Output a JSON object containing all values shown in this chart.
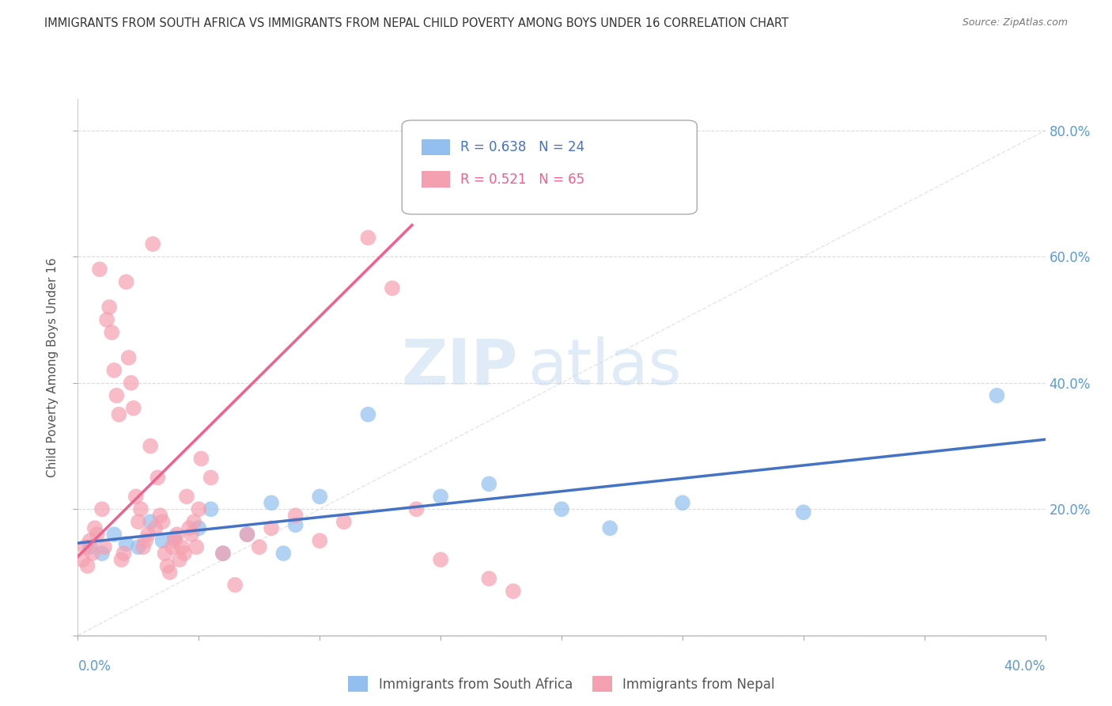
{
  "title": "IMMIGRANTS FROM SOUTH AFRICA VS IMMIGRANTS FROM NEPAL CHILD POVERTY AMONG BOYS UNDER 16 CORRELATION CHART",
  "source": "Source: ZipAtlas.com",
  "ylabel": "Child Poverty Among Boys Under 16",
  "legend_blue_r": "R = 0.638",
  "legend_blue_n": "N = 24",
  "legend_pink_r": "R = 0.521",
  "legend_pink_n": "N = 65",
  "blue_color": "#92BFEE",
  "pink_color": "#F5A0B0",
  "blue_line_color": "#4472C4",
  "pink_line_color": "#F06090",
  "watermark_zip": "ZIP",
  "watermark_atlas": "atlas",
  "blue_scatter": [
    [
      0.005,
      0.14
    ],
    [
      0.01,
      0.13
    ],
    [
      0.015,
      0.16
    ],
    [
      0.02,
      0.145
    ],
    [
      0.025,
      0.14
    ],
    [
      0.03,
      0.18
    ],
    [
      0.035,
      0.15
    ],
    [
      0.04,
      0.155
    ],
    [
      0.05,
      0.17
    ],
    [
      0.055,
      0.2
    ],
    [
      0.06,
      0.13
    ],
    [
      0.07,
      0.16
    ],
    [
      0.08,
      0.21
    ],
    [
      0.085,
      0.13
    ],
    [
      0.09,
      0.175
    ],
    [
      0.1,
      0.22
    ],
    [
      0.12,
      0.35
    ],
    [
      0.15,
      0.22
    ],
    [
      0.17,
      0.24
    ],
    [
      0.2,
      0.2
    ],
    [
      0.22,
      0.17
    ],
    [
      0.25,
      0.21
    ],
    [
      0.3,
      0.195
    ],
    [
      0.38,
      0.38
    ]
  ],
  "pink_scatter": [
    [
      0.002,
      0.12
    ],
    [
      0.003,
      0.14
    ],
    [
      0.004,
      0.11
    ],
    [
      0.005,
      0.15
    ],
    [
      0.006,
      0.13
    ],
    [
      0.007,
      0.17
    ],
    [
      0.008,
      0.16
    ],
    [
      0.009,
      0.58
    ],
    [
      0.01,
      0.2
    ],
    [
      0.011,
      0.14
    ],
    [
      0.012,
      0.5
    ],
    [
      0.013,
      0.52
    ],
    [
      0.014,
      0.48
    ],
    [
      0.015,
      0.42
    ],
    [
      0.016,
      0.38
    ],
    [
      0.017,
      0.35
    ],
    [
      0.018,
      0.12
    ],
    [
      0.019,
      0.13
    ],
    [
      0.02,
      0.56
    ],
    [
      0.021,
      0.44
    ],
    [
      0.022,
      0.4
    ],
    [
      0.023,
      0.36
    ],
    [
      0.024,
      0.22
    ],
    [
      0.025,
      0.18
    ],
    [
      0.026,
      0.2
    ],
    [
      0.027,
      0.14
    ],
    [
      0.028,
      0.15
    ],
    [
      0.029,
      0.16
    ],
    [
      0.03,
      0.3
    ],
    [
      0.031,
      0.62
    ],
    [
      0.032,
      0.17
    ],
    [
      0.033,
      0.25
    ],
    [
      0.034,
      0.19
    ],
    [
      0.035,
      0.18
    ],
    [
      0.036,
      0.13
    ],
    [
      0.037,
      0.11
    ],
    [
      0.038,
      0.1
    ],
    [
      0.039,
      0.14
    ],
    [
      0.04,
      0.15
    ],
    [
      0.041,
      0.16
    ],
    [
      0.042,
      0.12
    ],
    [
      0.043,
      0.14
    ],
    [
      0.044,
      0.13
    ],
    [
      0.045,
      0.22
    ],
    [
      0.046,
      0.17
    ],
    [
      0.047,
      0.16
    ],
    [
      0.048,
      0.18
    ],
    [
      0.049,
      0.14
    ],
    [
      0.05,
      0.2
    ],
    [
      0.051,
      0.28
    ],
    [
      0.055,
      0.25
    ],
    [
      0.06,
      0.13
    ],
    [
      0.065,
      0.08
    ],
    [
      0.07,
      0.16
    ],
    [
      0.075,
      0.14
    ],
    [
      0.08,
      0.17
    ],
    [
      0.09,
      0.19
    ],
    [
      0.1,
      0.15
    ],
    [
      0.11,
      0.18
    ],
    [
      0.12,
      0.63
    ],
    [
      0.13,
      0.55
    ],
    [
      0.14,
      0.2
    ],
    [
      0.15,
      0.12
    ],
    [
      0.17,
      0.09
    ],
    [
      0.18,
      0.07
    ]
  ],
  "xlim": [
    0.0,
    0.4
  ],
  "ylim": [
    0.0,
    0.85
  ],
  "pink_line_slope": 3.8,
  "pink_line_intercept": 0.125,
  "grid_color": "#CCCCCC",
  "background_color": "#FFFFFF",
  "right_tick_color": "#5B9BD5",
  "title_color": "#333333",
  "source_color": "#777777",
  "ylabel_color": "#555555"
}
